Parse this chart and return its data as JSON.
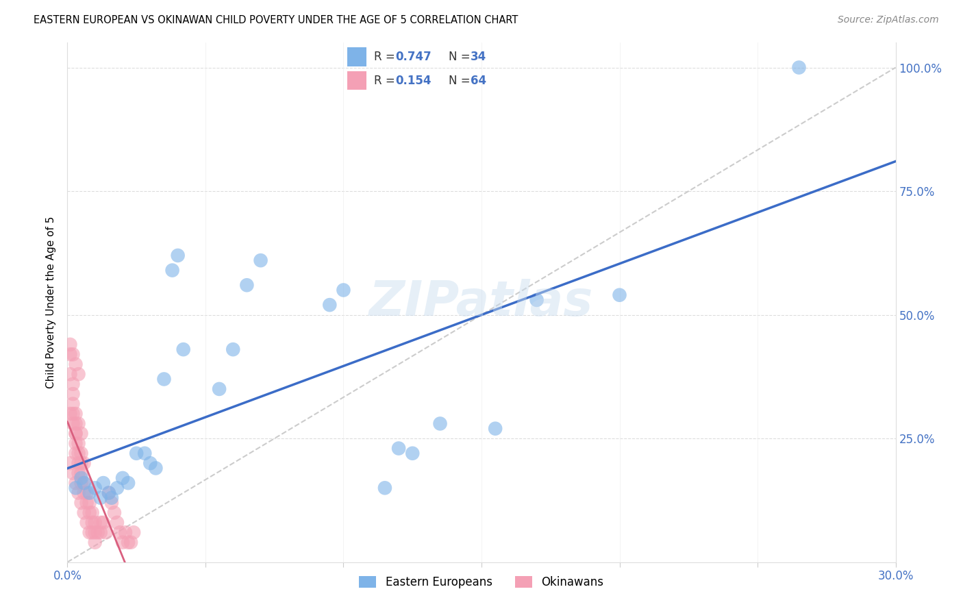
{
  "title": "EASTERN EUROPEAN VS OKINAWAN CHILD POVERTY UNDER THE AGE OF 5 CORRELATION CHART",
  "source": "Source: ZipAtlas.com",
  "tick_color": "#4472C4",
  "ylabel": "Child Poverty Under the Age of 5",
  "xlim": [
    0.0,
    0.3
  ],
  "ylim": [
    0.0,
    1.05
  ],
  "xticks": [
    0.0,
    0.05,
    0.1,
    0.15,
    0.2,
    0.25,
    0.3
  ],
  "xtick_labels": [
    "0.0%",
    "",
    "",
    "",
    "",
    "",
    "30.0%"
  ],
  "ytick_positions": [
    0.0,
    0.25,
    0.5,
    0.75,
    1.0
  ],
  "ytick_labels": [
    "",
    "25.0%",
    "50.0%",
    "75.0%",
    "100.0%"
  ],
  "blue_color": "#7EB3E8",
  "pink_color": "#F4A0B5",
  "blue_line_color": "#3B6CC7",
  "pink_line_color": "#D95F7F",
  "legend_R_blue": "0.747",
  "legend_N_blue": "34",
  "legend_R_pink": "0.154",
  "legend_N_pink": "64",
  "legend_label_blue": "Eastern Europeans",
  "legend_label_pink": "Okinawans",
  "watermark": "ZIPatlas",
  "blue_scatter_x": [
    0.003,
    0.005,
    0.006,
    0.008,
    0.01,
    0.012,
    0.013,
    0.015,
    0.016,
    0.018,
    0.02,
    0.022,
    0.025,
    0.028,
    0.03,
    0.032,
    0.035,
    0.038,
    0.04,
    0.042,
    0.055,
    0.06,
    0.065,
    0.07,
    0.095,
    0.1,
    0.115,
    0.12,
    0.125,
    0.135,
    0.155,
    0.17,
    0.2,
    0.265
  ],
  "blue_scatter_y": [
    0.15,
    0.17,
    0.16,
    0.14,
    0.15,
    0.13,
    0.16,
    0.14,
    0.13,
    0.15,
    0.17,
    0.16,
    0.22,
    0.22,
    0.2,
    0.19,
    0.37,
    0.59,
    0.62,
    0.43,
    0.35,
    0.43,
    0.56,
    0.61,
    0.52,
    0.55,
    0.15,
    0.23,
    0.22,
    0.28,
    0.27,
    0.53,
    0.54,
    1.0
  ],
  "pink_scatter_x": [
    0.001,
    0.001,
    0.002,
    0.002,
    0.002,
    0.003,
    0.003,
    0.003,
    0.003,
    0.004,
    0.004,
    0.004,
    0.005,
    0.005,
    0.005,
    0.006,
    0.006,
    0.007,
    0.007,
    0.008,
    0.008,
    0.009,
    0.009,
    0.01,
    0.01,
    0.011,
    0.012,
    0.012,
    0.013,
    0.014,
    0.015,
    0.016,
    0.017,
    0.018,
    0.019,
    0.02,
    0.021,
    0.022,
    0.023,
    0.024,
    0.001,
    0.002,
    0.003,
    0.004,
    0.005,
    0.006,
    0.007,
    0.008,
    0.009,
    0.01,
    0.001,
    0.002,
    0.003,
    0.004,
    0.005,
    0.006,
    0.002,
    0.003,
    0.004,
    0.005,
    0.001,
    0.002,
    0.003,
    0.004
  ],
  "pink_scatter_y": [
    0.38,
    0.42,
    0.34,
    0.36,
    0.3,
    0.26,
    0.28,
    0.22,
    0.24,
    0.2,
    0.22,
    0.18,
    0.2,
    0.16,
    0.18,
    0.14,
    0.16,
    0.14,
    0.12,
    0.12,
    0.1,
    0.1,
    0.08,
    0.08,
    0.06,
    0.06,
    0.08,
    0.06,
    0.08,
    0.06,
    0.14,
    0.12,
    0.1,
    0.08,
    0.06,
    0.04,
    0.06,
    0.04,
    0.04,
    0.06,
    0.2,
    0.18,
    0.16,
    0.14,
    0.12,
    0.1,
    0.08,
    0.06,
    0.06,
    0.04,
    0.3,
    0.28,
    0.26,
    0.24,
    0.22,
    0.2,
    0.32,
    0.3,
    0.28,
    0.26,
    0.44,
    0.42,
    0.4,
    0.38
  ]
}
